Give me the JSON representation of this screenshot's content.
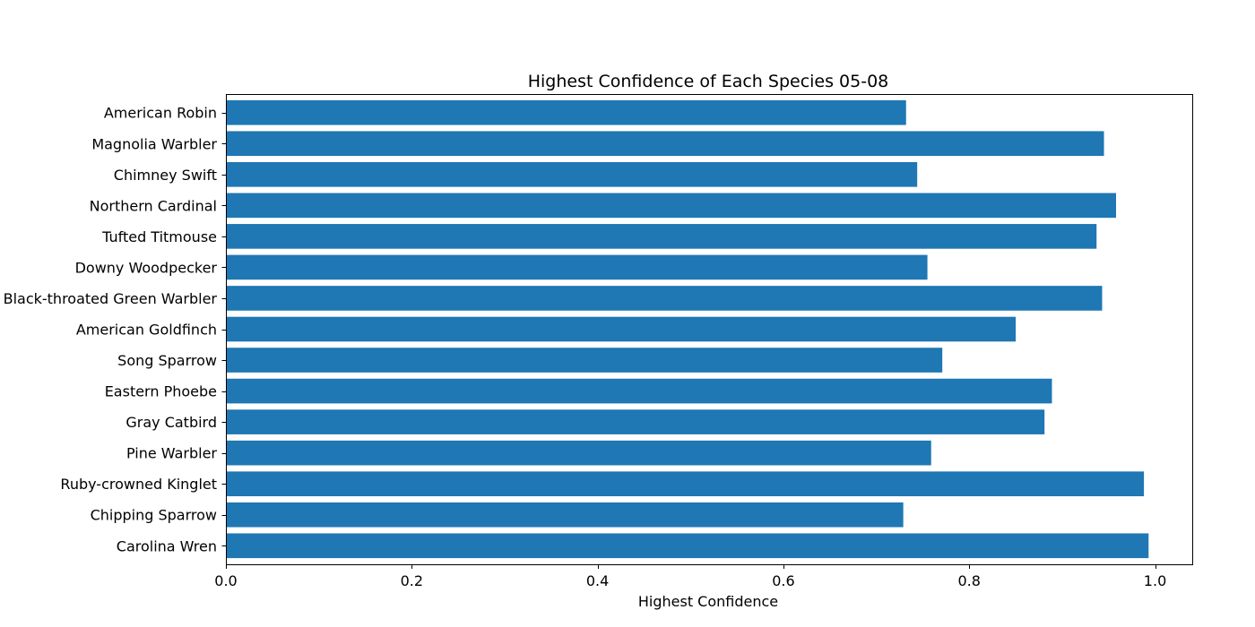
{
  "chart_data": {
    "type": "bar",
    "orientation": "horizontal",
    "title": "Highest Confidence of Each Species 05-08",
    "xlabel": "Highest Confidence",
    "ylabel": "",
    "xlim": [
      0,
      1.04
    ],
    "xticks": [
      "0.0",
      "0.2",
      "0.4",
      "0.6",
      "0.8",
      "1.0"
    ],
    "grid": false,
    "bar_color": "#1f77b4",
    "categories": [
      "Carolina Wren",
      "Chipping Sparrow",
      "Ruby-crowned Kinglet",
      "Pine Warbler",
      "Gray Catbird",
      "Eastern Phoebe",
      "Song Sparrow",
      "American Goldfinch",
      "Black-throated Green Warbler",
      "Downy Woodpecker",
      "Tufted Titmouse",
      "Northern Cardinal",
      "Chimney Swift",
      "Magnolia Warbler",
      "American Robin"
    ],
    "values": [
      0.993,
      0.729,
      0.988,
      0.759,
      0.881,
      0.889,
      0.771,
      0.85,
      0.943,
      0.755,
      0.937,
      0.958,
      0.744,
      0.945,
      0.732
    ]
  }
}
